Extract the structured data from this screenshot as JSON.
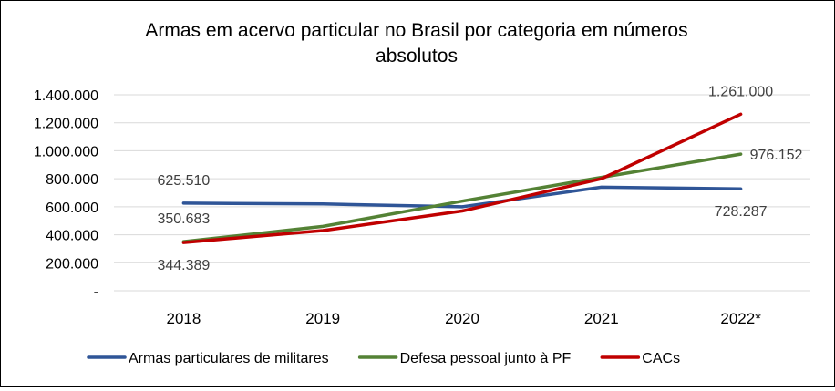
{
  "chart_data": {
    "type": "line",
    "title": "Armas em acervo particular no Brasil por categoria em números absolutos",
    "title_lines": [
      "Armas em acervo particular no Brasil por categoria em números",
      "absolutos"
    ],
    "categories": [
      "2018",
      "2019",
      "2020",
      "2021",
      "2022*"
    ],
    "ylim": [
      0,
      1400000
    ],
    "yticks": [
      0,
      200000,
      400000,
      600000,
      800000,
      1000000,
      1200000,
      1400000
    ],
    "ytick_labels": [
      "-",
      "200.000",
      "400.000",
      "600.000",
      "800.000",
      "1.000.000",
      "1.200.000",
      "1.400.000"
    ],
    "grid": true,
    "legend_position": "bottom",
    "series": [
      {
        "name": "Armas particulares de militares",
        "color": "#2F5597",
        "values": [
          625510,
          620000,
          600000,
          740000,
          728287
        ]
      },
      {
        "name": "Defesa pessoal junto à PF",
        "color": "#548235",
        "values": [
          350683,
          460000,
          640000,
          810000,
          976152
        ]
      },
      {
        "name": "CACs",
        "color": "#C00000",
        "values": [
          344389,
          430000,
          570000,
          800000,
          1261000
        ]
      }
    ],
    "data_labels": [
      {
        "text": "625.510",
        "series": 0,
        "index": 0,
        "place": "above"
      },
      {
        "text": "350.683",
        "series": 1,
        "index": 0,
        "place": "above"
      },
      {
        "text": "344.389",
        "series": 2,
        "index": 0,
        "place": "below"
      },
      {
        "text": "728.287",
        "series": 0,
        "index": 4,
        "place": "below"
      },
      {
        "text": "976.152",
        "series": 1,
        "index": 4,
        "place": "right"
      },
      {
        "text": "1.261.000",
        "series": 2,
        "index": 4,
        "place": "above"
      }
    ]
  }
}
